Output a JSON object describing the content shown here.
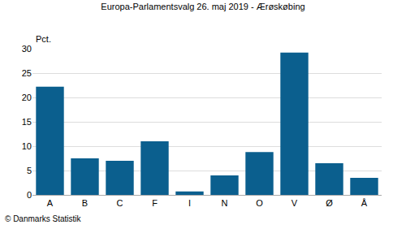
{
  "chart_data": {
    "type": "bar",
    "title": "Europa-Parlamentsvalg 26. maj 2019 - Ærøskøbing",
    "ylabel": "Pct.",
    "annotations": [
      "© Danmarks Statistik"
    ],
    "categories": [
      "A",
      "B",
      "C",
      "F",
      "I",
      "N",
      "O",
      "V",
      "Ø",
      "Å"
    ],
    "values": [
      22.2,
      7.5,
      7.0,
      11.0,
      0.7,
      4.0,
      8.8,
      29.2,
      6.5,
      3.5
    ],
    "color": "#0b5f8e",
    "ylim": [
      0,
      30
    ],
    "yticks": [
      0,
      5,
      10,
      15,
      20,
      25,
      30
    ],
    "grid": true
  }
}
